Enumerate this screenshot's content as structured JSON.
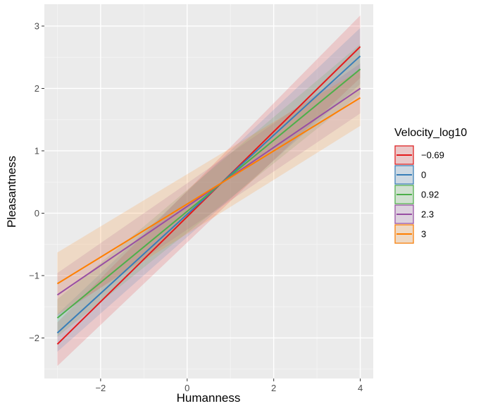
{
  "chart_data": {
    "type": "line",
    "xlabel": "Humanness",
    "ylabel": "Pleasantness",
    "xlim": [
      -3.3,
      4.3
    ],
    "ylim": [
      -2.65,
      3.35
    ],
    "x_ticks": [
      -2,
      0,
      2,
      4
    ],
    "x_tick_labels": [
      "−2",
      "0",
      "2",
      "4"
    ],
    "y_ticks": [
      -2,
      -1,
      0,
      1,
      2,
      3
    ],
    "y_tick_labels": [
      "−2",
      "−1",
      "0",
      "1",
      "2",
      "3"
    ],
    "grid": true,
    "legend": {
      "title": "Velocity_log10",
      "placement": "right"
    },
    "series": [
      {
        "name": "−0.69",
        "color": "#e41a1c",
        "x": [
          -3,
          4
        ],
        "y": [
          -2.1,
          2.67
        ],
        "lower": [
          -2.45,
          2.17
        ],
        "upper": [
          -1.75,
          3.17
        ]
      },
      {
        "name": "0",
        "color": "#377eb8",
        "x": [
          -3,
          4
        ],
        "y": [
          -1.92,
          2.52
        ],
        "lower": [
          -2.22,
          2.07
        ],
        "upper": [
          -1.62,
          2.97
        ]
      },
      {
        "name": "0.92",
        "color": "#4daf4a",
        "x": [
          -3,
          4
        ],
        "y": [
          -1.68,
          2.31
        ],
        "lower": [
          -1.98,
          1.91
        ],
        "upper": [
          -1.38,
          2.71
        ]
      },
      {
        "name": "2.3",
        "color": "#984ea3",
        "x": [
          -3,
          4
        ],
        "y": [
          -1.31,
          2.0
        ],
        "lower": [
          -1.66,
          1.6
        ],
        "upper": [
          -0.96,
          2.4
        ]
      },
      {
        "name": "3",
        "color": "#ff7f00",
        "x": [
          -3,
          4
        ],
        "y": [
          -1.13,
          1.85
        ],
        "lower": [
          -1.63,
          1.4
        ],
        "upper": [
          -0.63,
          2.3
        ]
      }
    ]
  }
}
